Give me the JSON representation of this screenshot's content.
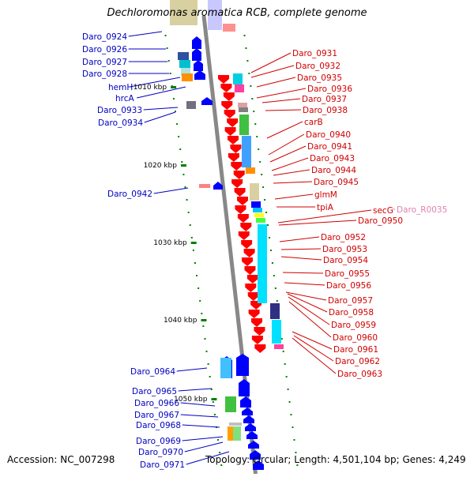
{
  "title": "Dechloromonas aromatica RCB, complete genome",
  "footer": {
    "accession": "Accession: NC_007298",
    "topology": "Topology: circular; Length: 4,501,104 bp; Genes: 4,249"
  },
  "scale_marks": [
    "1010 kbp",
    "1020 kbp",
    "1030 kbp",
    "1040 kbp",
    "1050 kbp"
  ],
  "genes_left": [
    "Daro_0924",
    "Daro_0926",
    "Daro_0927",
    "Daro_0928",
    "hemH",
    "hrcA",
    "Daro_0933",
    "Daro_0934",
    "Daro_0942",
    "Daro_0964",
    "Daro_0965",
    "Daro_0966",
    "Daro_0967",
    "Daro_0968",
    "Daro_0969",
    "Daro_0970",
    "Daro_0971"
  ],
  "genes_right": [
    "Daro_0931",
    "Daro_0932",
    "Daro_0935",
    "Daro_0936",
    "Daro_0937",
    "Daro_0938",
    "carB",
    "Daro_0940",
    "Daro_0941",
    "Daro_0943",
    "Daro_0944",
    "Daro_0945",
    "glmM",
    "tpiA",
    "secG",
    "Daro_0950",
    "Daro_0952",
    "Daro_0953",
    "Daro_0954",
    "Daro_0955",
    "Daro_0956",
    "Daro_0957",
    "Daro_0958",
    "Daro_0959",
    "Daro_0960",
    "Daro_0961",
    "Daro_0962",
    "Daro_0963"
  ],
  "rna_label": "Daro_R0035",
  "colors": {
    "left_label": "#0000c0",
    "right_label": "#d00000",
    "rna_label": "#e080b0",
    "forward_gene": "#0000ff",
    "reverse_gene": "#ff0000",
    "backbone": "#888888",
    "tick": "#008000"
  }
}
